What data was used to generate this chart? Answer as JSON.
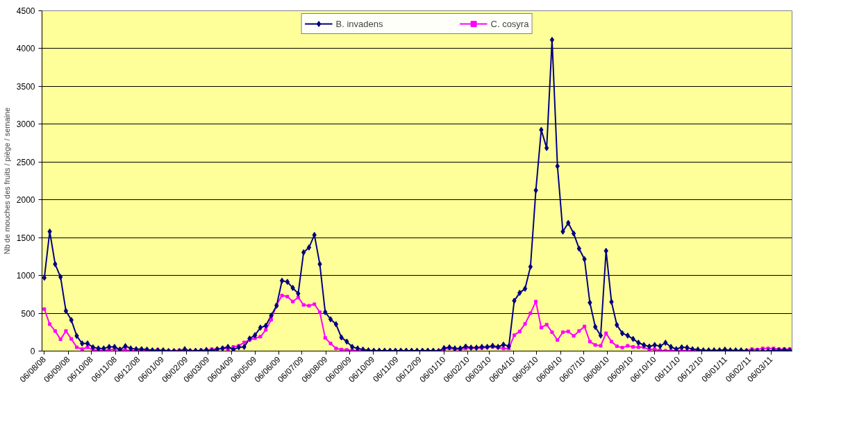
{
  "chart_data": {
    "type": "line",
    "ylabel": "Nb de mouches des fruits / piège / semaine",
    "x": [
      "2008-08-06",
      "2008-08-13",
      "2008-08-20",
      "2008-08-27",
      "2008-09-03",
      "2008-09-10",
      "2008-09-17",
      "2008-09-24",
      "2008-10-01",
      "2008-10-08",
      "2008-10-15",
      "2008-10-22",
      "2008-10-29",
      "2008-11-05",
      "2008-11-12",
      "2008-11-19",
      "2008-11-26",
      "2008-12-03",
      "2008-12-10",
      "2008-12-17",
      "2008-12-24",
      "2008-12-31",
      "2009-01-07",
      "2009-01-14",
      "2009-01-21",
      "2009-01-28",
      "2009-02-04",
      "2009-02-11",
      "2009-02-18",
      "2009-02-25",
      "2009-03-04",
      "2009-03-11",
      "2009-03-18",
      "2009-03-25",
      "2009-04-01",
      "2009-04-08",
      "2009-04-15",
      "2009-04-22",
      "2009-04-29",
      "2009-05-06",
      "2009-05-13",
      "2009-05-20",
      "2009-05-27",
      "2009-06-03",
      "2009-06-10",
      "2009-06-17",
      "2009-06-24",
      "2009-07-01",
      "2009-07-08",
      "2009-07-15",
      "2009-07-22",
      "2009-07-29",
      "2009-08-05",
      "2009-08-12",
      "2009-08-19",
      "2009-08-26",
      "2009-09-02",
      "2009-09-09",
      "2009-09-16",
      "2009-09-23",
      "2009-09-30",
      "2009-10-07",
      "2009-10-14",
      "2009-10-21",
      "2009-10-28",
      "2009-11-04",
      "2009-11-11",
      "2009-11-18",
      "2009-11-25",
      "2009-12-02",
      "2009-12-09",
      "2009-12-16",
      "2009-12-23",
      "2009-12-30",
      "2010-01-06",
      "2010-01-13",
      "2010-01-20",
      "2010-01-27",
      "2010-02-03",
      "2010-02-10",
      "2010-02-17",
      "2010-02-24",
      "2010-03-03",
      "2010-03-10",
      "2010-03-17",
      "2010-03-24",
      "2010-03-31",
      "2010-04-07",
      "2010-04-14",
      "2010-04-21",
      "2010-04-28",
      "2010-05-05",
      "2010-05-12",
      "2010-05-19",
      "2010-05-26",
      "2010-06-02",
      "2010-06-09",
      "2010-06-16",
      "2010-06-23",
      "2010-06-30",
      "2010-07-07",
      "2010-07-14",
      "2010-07-21",
      "2010-07-28",
      "2010-08-04",
      "2010-08-11",
      "2010-08-18",
      "2010-08-25",
      "2010-09-01",
      "2010-09-08",
      "2010-09-15",
      "2010-09-22",
      "2010-09-29",
      "2010-10-06",
      "2010-10-13",
      "2010-10-20",
      "2010-10-27",
      "2010-11-03",
      "2010-11-10",
      "2010-11-17",
      "2010-11-24",
      "2010-12-01",
      "2010-12-08",
      "2010-12-15",
      "2010-12-22",
      "2010-12-29",
      "2011-01-05",
      "2011-01-12",
      "2011-01-19",
      "2011-01-26",
      "2011-02-02",
      "2011-02-09",
      "2011-02-16",
      "2011-02-23",
      "2011-03-02",
      "2011-03-09",
      "2011-03-16",
      "2011-03-23",
      "2011-03-30"
    ],
    "series": [
      {
        "name": "B. invadens",
        "color": "#000080",
        "marker": "diamond",
        "values": [
          970,
          1580,
          1150,
          980,
          530,
          410,
          200,
          100,
          100,
          50,
          35,
          35,
          55,
          55,
          20,
          65,
          35,
          25,
          25,
          20,
          10,
          10,
          10,
          0,
          0,
          0,
          25,
          0,
          5,
          5,
          15,
          5,
          25,
          35,
          55,
          20,
          50,
          55,
          165,
          210,
          310,
          335,
          470,
          600,
          930,
          915,
          835,
          760,
          1305,
          1370,
          1535,
          1150,
          515,
          420,
          355,
          180,
          125,
          55,
          35,
          20,
          10,
          5,
          5,
          5,
          5,
          5,
          5,
          5,
          5,
          5,
          5,
          5,
          5,
          0,
          40,
          50,
          35,
          35,
          60,
          45,
          45,
          55,
          55,
          70,
          55,
          85,
          65,
          665,
          770,
          825,
          1115,
          2125,
          2925,
          2685,
          4115,
          2445,
          1580,
          1695,
          1555,
          1355,
          1215,
          640,
          320,
          205,
          1325,
          650,
          345,
          235,
          205,
          160,
          110,
          80,
          60,
          80,
          65,
          110,
          55,
          25,
          50,
          45,
          25,
          20,
          10,
          10,
          10,
          10,
          20,
          10,
          10,
          10,
          0,
          0,
          0,
          0,
          0,
          10,
          10,
          15,
          10
        ]
      },
      {
        "name": "C. cosyra",
        "color": "#ff00ff",
        "marker": "square",
        "values": [
          555,
          355,
          265,
          155,
          265,
          160,
          50,
          25,
          50,
          15,
          10,
          10,
          15,
          25,
          15,
          15,
          5,
          5,
          10,
          15,
          10,
          15,
          10,
          5,
          5,
          10,
          10,
          5,
          5,
          10,
          10,
          25,
          25,
          40,
          25,
          55,
          70,
          115,
          145,
          170,
          190,
          280,
          415,
          610,
          735,
          720,
          655,
          710,
          610,
          600,
          620,
          515,
          175,
          100,
          35,
          20,
          15,
          10,
          5,
          5,
          5,
          5,
          5,
          5,
          5,
          5,
          5,
          5,
          5,
          5,
          5,
          5,
          5,
          5,
          25,
          35,
          25,
          20,
          35,
          40,
          40,
          40,
          50,
          55,
          45,
          35,
          35,
          210,
          260,
          360,
          500,
          655,
          310,
          350,
          250,
          145,
          250,
          260,
          200,
          265,
          325,
          125,
          80,
          70,
          235,
          125,
          65,
          45,
          70,
          55,
          50,
          50,
          20,
          25,
          10,
          5,
          5,
          5,
          5,
          5,
          5,
          5,
          5,
          5,
          5,
          5,
          5,
          5,
          5,
          5,
          10,
          25,
          20,
          35,
          35,
          35,
          25,
          25,
          25
        ]
      }
    ],
    "xlim": [
      "2008-08-03",
      "2011-04-02"
    ],
    "xticks": [
      {
        "value": "2008-08-06",
        "label": "06/08/08"
      },
      {
        "value": "2008-09-06",
        "label": "06/09/08"
      },
      {
        "value": "2008-10-06",
        "label": "06/10/08"
      },
      {
        "value": "2008-11-06",
        "label": "06/11/08"
      },
      {
        "value": "2008-12-06",
        "label": "06/12/08"
      },
      {
        "value": "2009-01-06",
        "label": "06/01/09"
      },
      {
        "value": "2009-02-06",
        "label": "06/02/09"
      },
      {
        "value": "2009-03-06",
        "label": "06/03/09"
      },
      {
        "value": "2009-04-06",
        "label": "06/04/09"
      },
      {
        "value": "2009-05-06",
        "label": "06/05/09"
      },
      {
        "value": "2009-06-06",
        "label": "06/06/09"
      },
      {
        "value": "2009-07-06",
        "label": "06/07/09"
      },
      {
        "value": "2009-08-06",
        "label": "06/08/09"
      },
      {
        "value": "2009-09-06",
        "label": "06/09/09"
      },
      {
        "value": "2009-10-06",
        "label": "06/10/09"
      },
      {
        "value": "2009-11-06",
        "label": "06/11/09"
      },
      {
        "value": "2009-12-06",
        "label": "06/12/09"
      },
      {
        "value": "2010-01-06",
        "label": "06/01/10"
      },
      {
        "value": "2010-02-06",
        "label": "06/02/10"
      },
      {
        "value": "2010-03-06",
        "label": "06/03/10"
      },
      {
        "value": "2010-04-06",
        "label": "06/04/10"
      },
      {
        "value": "2010-05-06",
        "label": "06/05/10"
      },
      {
        "value": "2010-06-06",
        "label": "06/06/10"
      },
      {
        "value": "2010-07-06",
        "label": "06/07/10"
      },
      {
        "value": "2010-08-06",
        "label": "06/08/10"
      },
      {
        "value": "2010-09-06",
        "label": "06/09/10"
      },
      {
        "value": "2010-10-06",
        "label": "06/10/10"
      },
      {
        "value": "2010-11-06",
        "label": "06/11/10"
      },
      {
        "value": "2010-12-06",
        "label": "06/12/10"
      },
      {
        "value": "2011-01-06",
        "label": "06/01/11"
      },
      {
        "value": "2011-02-06",
        "label": "06/02/11"
      },
      {
        "value": "2011-03-06",
        "label": "06/03/11"
      }
    ],
    "ylim": [
      0,
      4500
    ],
    "yticks": [
      0,
      500,
      1000,
      1500,
      2000,
      2500,
      3000,
      3500,
      4000,
      4500
    ],
    "grid": "y",
    "legend": "top",
    "line_style": "solid"
  }
}
